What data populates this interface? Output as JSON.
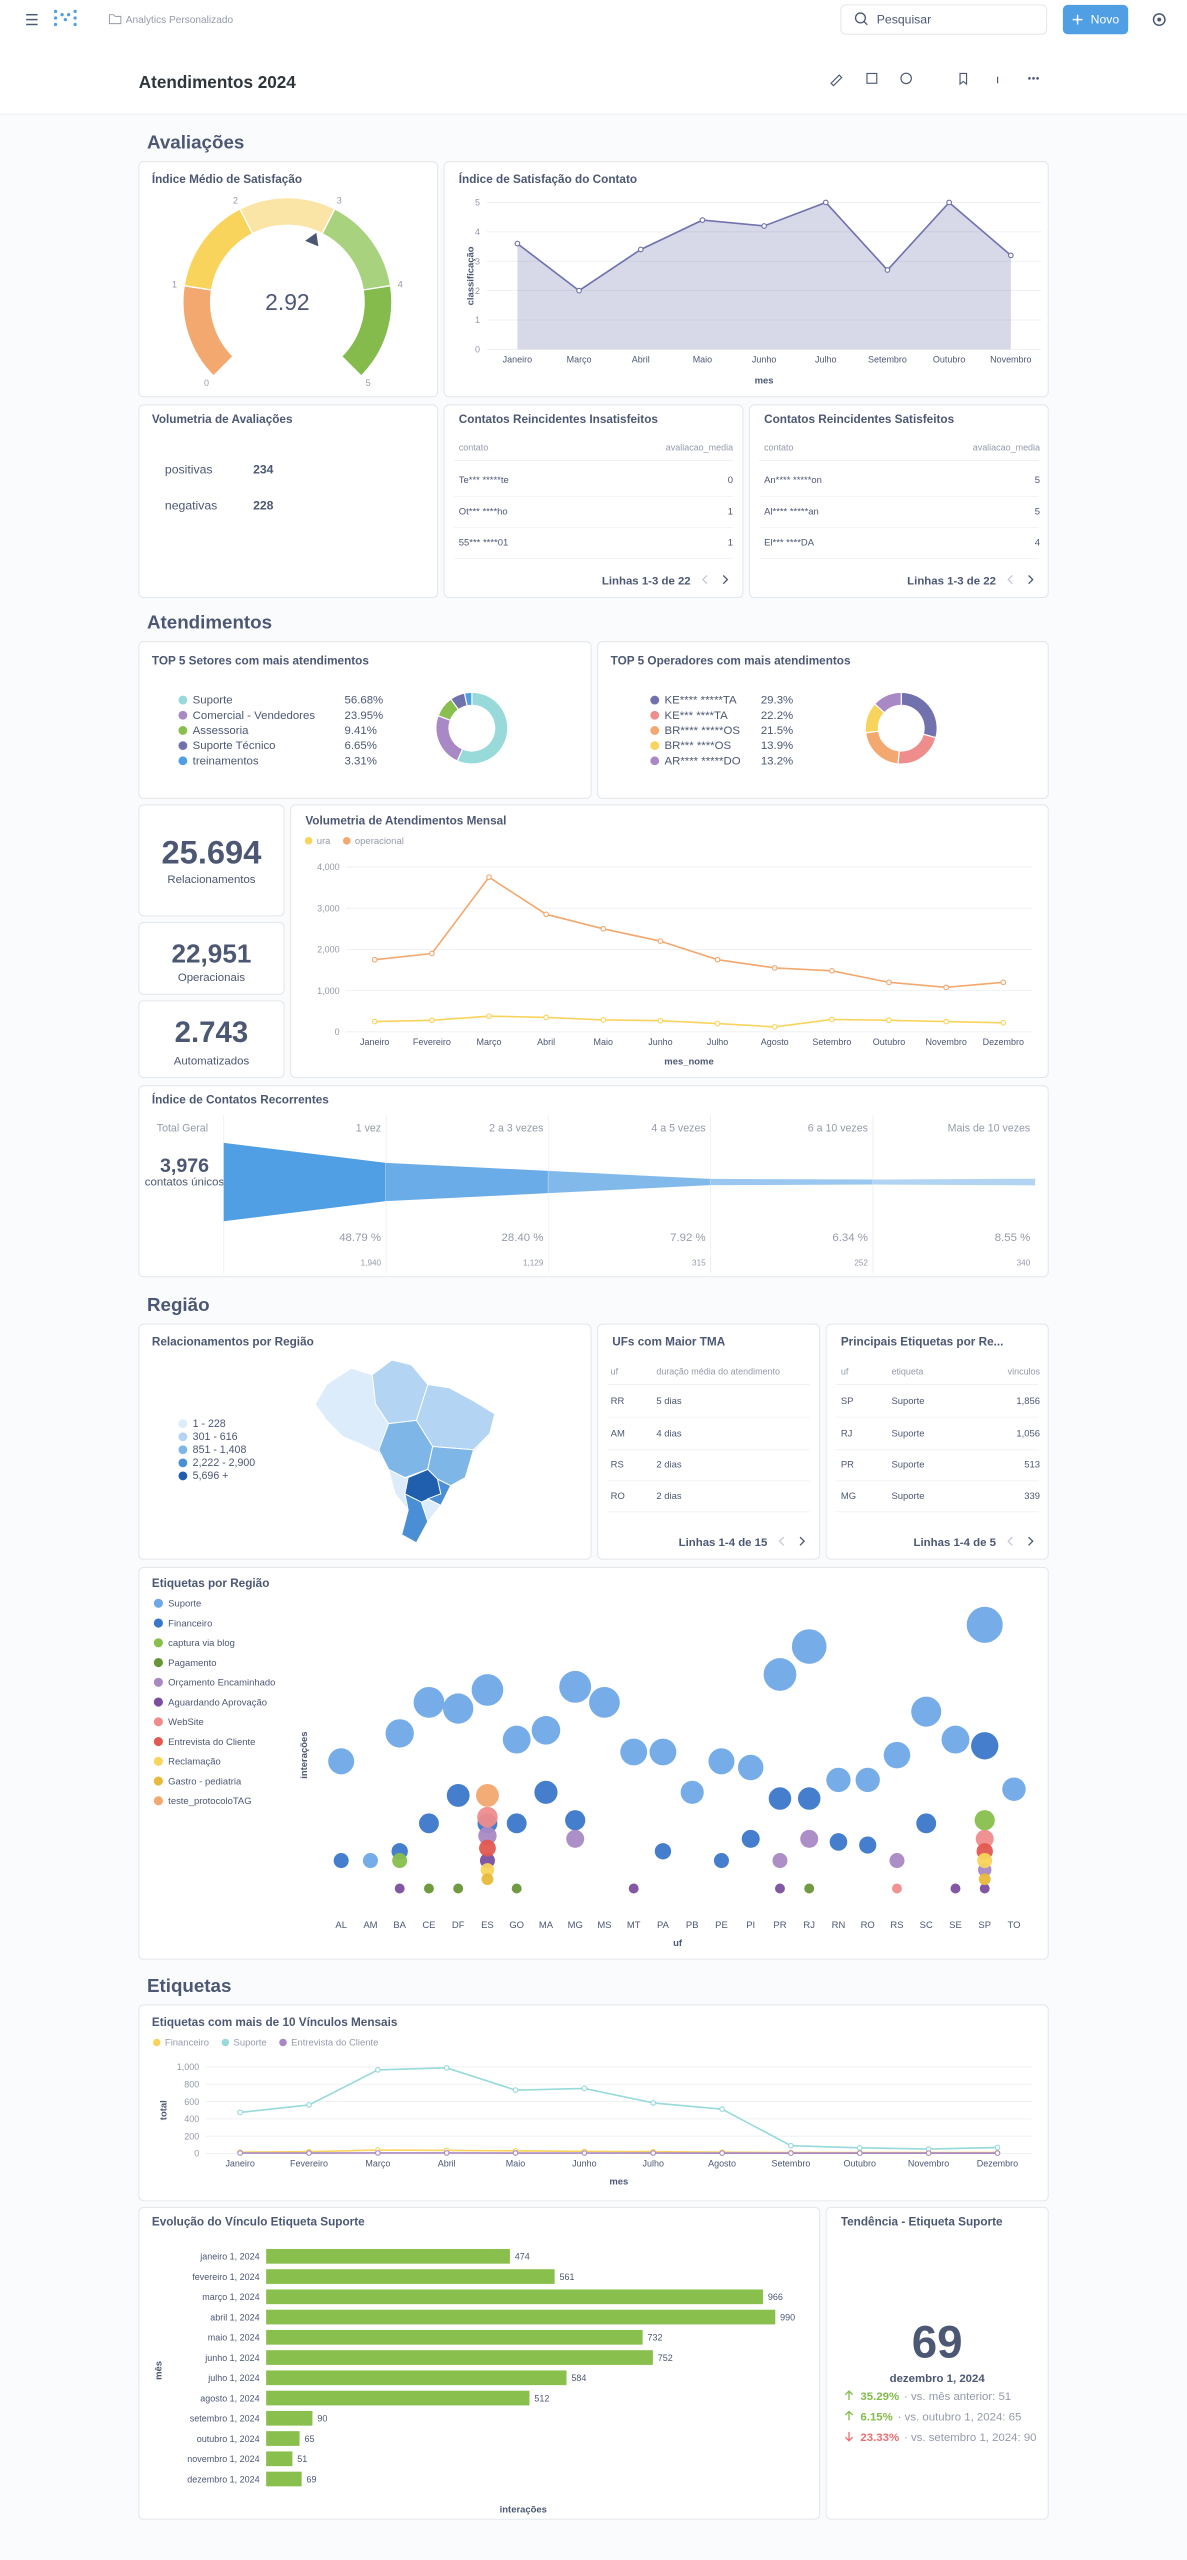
{
  "header": {
    "breadcrumb": "Analytics Personalizado",
    "search": "Pesquisar",
    "new_button": "Novo"
  },
  "dashboard": {
    "title": "Atendimentos 2024",
    "sections": [
      "Avaliações",
      "Atendimentos",
      "Região",
      "Etiquetas"
    ]
  },
  "chart_data": [
    {
      "type": "gauge",
      "title": "Índice Médio de Satisfação",
      "value": 2.92,
      "ylim": [
        0,
        5
      ],
      "yticks": [
        0,
        1,
        2,
        3,
        4,
        5
      ],
      "colors": [
        "#f2a86f",
        "#f9d45c",
        "#fbe5a6",
        "#a9d27f",
        "#84bb4c"
      ]
    },
    {
      "type": "area",
      "title": "Índice de Satisfação do Contato",
      "categories": [
        "Janeiro",
        "Março",
        "Abril",
        "Maio",
        "Junho",
        "Julho",
        "Setembro",
        "Outubro",
        "Novembro"
      ],
      "values": [
        3.6,
        2.0,
        3.4,
        4.4,
        4.2,
        5.0,
        2.7,
        5.0,
        3.2
      ],
      "color": "#7172ad",
      "ylim": [
        0,
        5
      ],
      "yticks": [
        0,
        1,
        2,
        3,
        4,
        5
      ],
      "x_label": "mes",
      "y_label": "classificação",
      "grid": true
    },
    {
      "type": "line",
      "title": "Volumetria de Atendimentos Mensal",
      "categories": [
        "Janeiro",
        "Fevereiro",
        "Março",
        "Abril",
        "Maio",
        "Junho",
        "Julho",
        "Agosto",
        "Setembro",
        "Outubro",
        "Novembro",
        "Dezembro"
      ],
      "series": [
        {
          "name": "ura",
          "color": "#f9d45c",
          "values": [
            250,
            280,
            380,
            350,
            290,
            270,
            200,
            120,
            300,
            280,
            250,
            220
          ]
        },
        {
          "name": "operacional",
          "color": "#f2a86f",
          "values": [
            1750,
            1900,
            3750,
            2850,
            2500,
            2200,
            1750,
            1550,
            1480,
            1200,
            1080,
            1200
          ]
        }
      ],
      "ylim": [
        0,
        4000
      ],
      "yticks": [
        0,
        {
          "value": 1000,
          "label": "1,000"
        },
        {
          "value": 2000,
          "label": "2,000"
        },
        {
          "value": 3000,
          "label": "3,000"
        },
        {
          "value": 4000,
          "label": "4,000"
        }
      ],
      "x_label": "mes_nome",
      "grid": true,
      "legend": "top-left"
    },
    {
      "type": "donut",
      "title": "TOP 5 Setores com mais atendimentos",
      "categories": [
        "Suporte",
        "Comercial - Vendedores",
        "Assessoria",
        "Suporte Técnico",
        "treinamentos"
      ],
      "values": [
        56.68,
        23.95,
        9.41,
        6.65,
        3.31
      ],
      "value_labels": [
        "56.68%",
        "23.95%",
        "9.41%",
        "6.65%",
        "3.31%"
      ],
      "colors": [
        "#98d9d9",
        "#a989c5",
        "#88bf4d",
        "#7172ad",
        "#509ee3"
      ]
    },
    {
      "type": "donut",
      "title": "TOP 5 Operadores com mais atendimentos",
      "categories": [
        "KE**** *****TA",
        "KE*** ****TA",
        "BR**** *****OS",
        "BR*** ****OS",
        "AR**** *****DO"
      ],
      "values": [
        29.3,
        22.2,
        21.5,
        13.9,
        13.2
      ],
      "value_labels": [
        "29.3%",
        "22.2%",
        "21.5%",
        "13.9%",
        "13.2%"
      ],
      "colors": [
        "#7172ad",
        "#ef8c8c",
        "#f2a86f",
        "#f9d45c",
        "#a989c5"
      ]
    },
    {
      "type": "funnel",
      "title": "Índice de Contatos Recorrentes",
      "total_title": "Total Geral",
      "total": 3976,
      "total_label": "3,976",
      "unit": "contatos únicos",
      "categories": [
        "1 vez",
        "2 a 3 vezes",
        "4 a 5 vezes",
        "6 a 10 vezes",
        "Mais de 10 vezes"
      ],
      "values": [
        1940,
        1129,
        315,
        252,
        340
      ],
      "value_labels": [
        "1,940",
        "1,129",
        "315",
        "252",
        "340"
      ],
      "percent_labels": [
        "48.79 %",
        "28.40 %",
        "7.92 %",
        "6.34 %",
        "8.55 %"
      ],
      "color": "#509ee3"
    },
    {
      "type": "map",
      "title": "Relacionamentos por Região",
      "legend": [
        "1 - 228",
        "301 - 616",
        "851 - 1,408",
        "2,222 - 2,900",
        "5,696 +"
      ],
      "colors": [
        "#dcecfa",
        "#b3d4f2",
        "#7fb6e8",
        "#4a8fd6",
        "#1f5fae"
      ]
    },
    {
      "type": "bubble",
      "title": "Etiquetas por Região",
      "categories": [
        "AL",
        "AM",
        "BA",
        "CE",
        "DF",
        "ES",
        "GO",
        "MA",
        "MG",
        "MS",
        "MT",
        "PA",
        "PB",
        "PE",
        "PI",
        "PR",
        "RJ",
        "RN",
        "RO",
        "RS",
        "SC",
        "SE",
        "SP",
        "TO"
      ],
      "series": [
        {
          "name": "Suporte",
          "color": "#6fa8e6",
          "values": [
            48,
            16,
            57,
            67,
            65,
            71,
            55,
            58,
            72,
            67,
            51,
            51,
            38,
            48,
            46,
            76,
            85,
            42,
            42,
            50,
            64,
            55,
            92,
            39
          ]
        },
        {
          "name": "Financeiro",
          "color": "#3a77c9",
          "values": [
            16,
            null,
            19,
            28,
            37,
            28,
            28,
            38,
            29,
            null,
            null,
            19,
            null,
            16,
            23,
            36,
            36,
            22,
            21,
            null,
            28,
            null,
            53,
            null
          ]
        },
        {
          "name": "captura via blog",
          "color": "#88bf4d",
          "values": [
            null,
            null,
            16,
            null,
            null,
            null,
            null,
            null,
            null,
            null,
            null,
            null,
            null,
            null,
            null,
            null,
            null,
            null,
            null,
            null,
            null,
            null,
            29,
            null
          ]
        },
        {
          "name": "Pagamento",
          "color": "#689636",
          "values": [
            null,
            null,
            null,
            7,
            7,
            null,
            7,
            null,
            null,
            null,
            null,
            null,
            null,
            null,
            null,
            null,
            7,
            null,
            null,
            null,
            null,
            null,
            null,
            null
          ]
        },
        {
          "name": "Orçamento Encaminhado",
          "color": "#a989c5",
          "values": [
            null,
            null,
            null,
            null,
            null,
            24,
            null,
            null,
            23,
            null,
            null,
            null,
            null,
            null,
            null,
            16,
            23,
            null,
            null,
            16,
            null,
            null,
            13,
            null
          ]
        },
        {
          "name": "Aguardando Aprovação",
          "color": "#7b4fa0",
          "values": [
            null,
            null,
            7,
            null,
            null,
            16,
            null,
            null,
            null,
            null,
            7,
            null,
            null,
            null,
            null,
            7,
            null,
            null,
            null,
            null,
            null,
            7,
            7,
            null
          ]
        },
        {
          "name": "WebSite",
          "color": "#ef8c8c",
          "values": [
            null,
            null,
            null,
            null,
            null,
            30,
            null,
            null,
            null,
            null,
            null,
            null,
            null,
            null,
            null,
            null,
            null,
            null,
            null,
            7,
            null,
            null,
            23,
            null
          ]
        },
        {
          "name": "Entrevista do Cliente",
          "color": "#e35850",
          "values": [
            null,
            null,
            null,
            null,
            null,
            20,
            null,
            null,
            null,
            null,
            null,
            null,
            null,
            null,
            null,
            null,
            null,
            null,
            null,
            null,
            null,
            null,
            19,
            null
          ]
        },
        {
          "name": "Reclamação",
          "color": "#f9d45c",
          "values": [
            null,
            null,
            null,
            null,
            null,
            13,
            null,
            null,
            null,
            null,
            null,
            null,
            null,
            null,
            null,
            null,
            null,
            null,
            null,
            null,
            null,
            null,
            16,
            null
          ]
        },
        {
          "name": "Gastro - pediatria",
          "color": "#e8b93a",
          "values": [
            null,
            null,
            null,
            null,
            null,
            10,
            null,
            null,
            null,
            null,
            null,
            null,
            null,
            null,
            null,
            null,
            null,
            null,
            null,
            null,
            null,
            null,
            10,
            null
          ]
        },
        {
          "name": "teste_protocoloTAG",
          "color": "#f2a86f",
          "values": [
            null,
            null,
            null,
            null,
            null,
            37,
            null,
            null,
            null,
            null,
            null,
            null,
            null,
            null,
            null,
            null,
            null,
            null,
            null,
            null,
            null,
            null,
            null,
            null
          ]
        }
      ],
      "ylim": [
        0,
        100
      ],
      "x_label": "uf",
      "y_label": "interações",
      "legend": "left"
    },
    {
      "type": "line",
      "title": "Etiquetas com mais de 10 Vínculos Mensais",
      "categories": [
        "Janeiro",
        "Fevereiro",
        "Março",
        "Abril",
        "Maio",
        "Junho",
        "Julho",
        "Agosto",
        "Setembro",
        "Outubro",
        "Novembro",
        "Dezembro"
      ],
      "series": [
        {
          "name": "Financeiro",
          "color": "#f9d45c",
          "values": [
            15,
            20,
            40,
            35,
            30,
            25,
            20,
            15,
            10,
            10,
            10,
            10
          ]
        },
        {
          "name": "Suporte",
          "color": "#98d9d9",
          "values": [
            474,
            561,
            966,
            990,
            732,
            752,
            584,
            512,
            90,
            65,
            51,
            69
          ]
        },
        {
          "name": "Entrevista do Cliente",
          "color": "#a989c5",
          "values": [
            5,
            5,
            6,
            6,
            5,
            5,
            5,
            4,
            4,
            4,
            4,
            4
          ]
        }
      ],
      "ylim": [
        0,
        1000
      ],
      "yticks": [
        0,
        200,
        400,
        600,
        800,
        {
          "value": 1000,
          "label": "1,000"
        }
      ],
      "x_label": "mes",
      "y_label": "total",
      "grid": true,
      "legend": "top-left"
    },
    {
      "type": "hbar",
      "title": "Evolução do Vínculo Etiqueta Suporte",
      "categories": [
        "janeiro 1, 2024",
        "fevereiro 1, 2024",
        "março 1, 2024",
        "abril 1, 2024",
        "maio 1, 2024",
        "junho 1, 2024",
        "julho 1, 2024",
        "agosto 1, 2024",
        "setembro 1, 2024",
        "outubro 1, 2024",
        "novembro 1, 2024",
        "dezembro 1, 2024"
      ],
      "values": [
        474,
        561,
        966,
        990,
        732,
        752,
        584,
        512,
        90,
        65,
        51,
        69
      ],
      "color": "#88bf4d",
      "xlim": [
        0,
        1000
      ],
      "x_label": "interações",
      "y_label": "mês"
    }
  ],
  "volumetria": {
    "title": "Volumetria de Avaliações",
    "rows": [
      {
        "label": "positivas",
        "value": 234
      },
      {
        "label": "negativas",
        "value": 228
      }
    ]
  },
  "tables": [
    {
      "title": "Contatos Reincidentes Insatisfeitos",
      "columns": [
        "contato",
        "avaliacao_media"
      ],
      "rows": [
        [
          "Te*** *****te",
          0
        ],
        [
          "Ot*** ****ho",
          1
        ],
        [
          "55*** ****01",
          1
        ]
      ],
      "footer": "Linhas 1-3 de 22"
    },
    {
      "title": "Contatos Reincidentes Satisfeitos",
      "columns": [
        "contato",
        "avaliacao_media"
      ],
      "rows": [
        [
          "An**** *****on",
          5
        ],
        [
          "Al**** *****an",
          5
        ],
        [
          "El*** ****DA",
          4
        ]
      ],
      "footer": "Linhas 1-3 de 22"
    },
    {
      "title": "UFs com Maior TMA",
      "columns": [
        "uf",
        "duração média do atendimento"
      ],
      "rows": [
        [
          "RR",
          "5 dias"
        ],
        [
          "AM",
          "4 dias"
        ],
        [
          "RS",
          "2 dias"
        ],
        [
          "RO",
          "2 dias"
        ]
      ],
      "footer": "Linhas 1-4 de 15"
    },
    {
      "title": "Principais Etiquetas por Re...",
      "columns": [
        "uf",
        "etiqueta",
        "vinculos"
      ],
      "rows": [
        [
          "SP",
          "Suporte",
          "1,856"
        ],
        [
          "RJ",
          "Suporte",
          "1,056"
        ],
        [
          "PR",
          "Suporte",
          "513"
        ],
        [
          "MG",
          "Suporte",
          "339"
        ]
      ],
      "footer": "Linhas 1-4 de 5"
    }
  ],
  "kpis": [
    {
      "value": "25.694",
      "label": "Relacionamentos"
    },
    {
      "value": "22,951",
      "label": "Operacionais"
    },
    {
      "value": "2.743",
      "label": "Automatizados"
    }
  ],
  "trend": {
    "title": "Tendência - Etiqueta Suporte",
    "value": 69,
    "date": "dezembro 1, 2024",
    "comparisons": [
      {
        "direction": "up",
        "change": "35.29%",
        "text": "· vs. mês anterior: 51"
      },
      {
        "direction": "up",
        "change": "6.15%",
        "text": "· vs. outubro 1, 2024: 65"
      },
      {
        "direction": "down",
        "change": "23.33%",
        "text": "· vs. setembro 1, 2024: 90"
      }
    ]
  }
}
